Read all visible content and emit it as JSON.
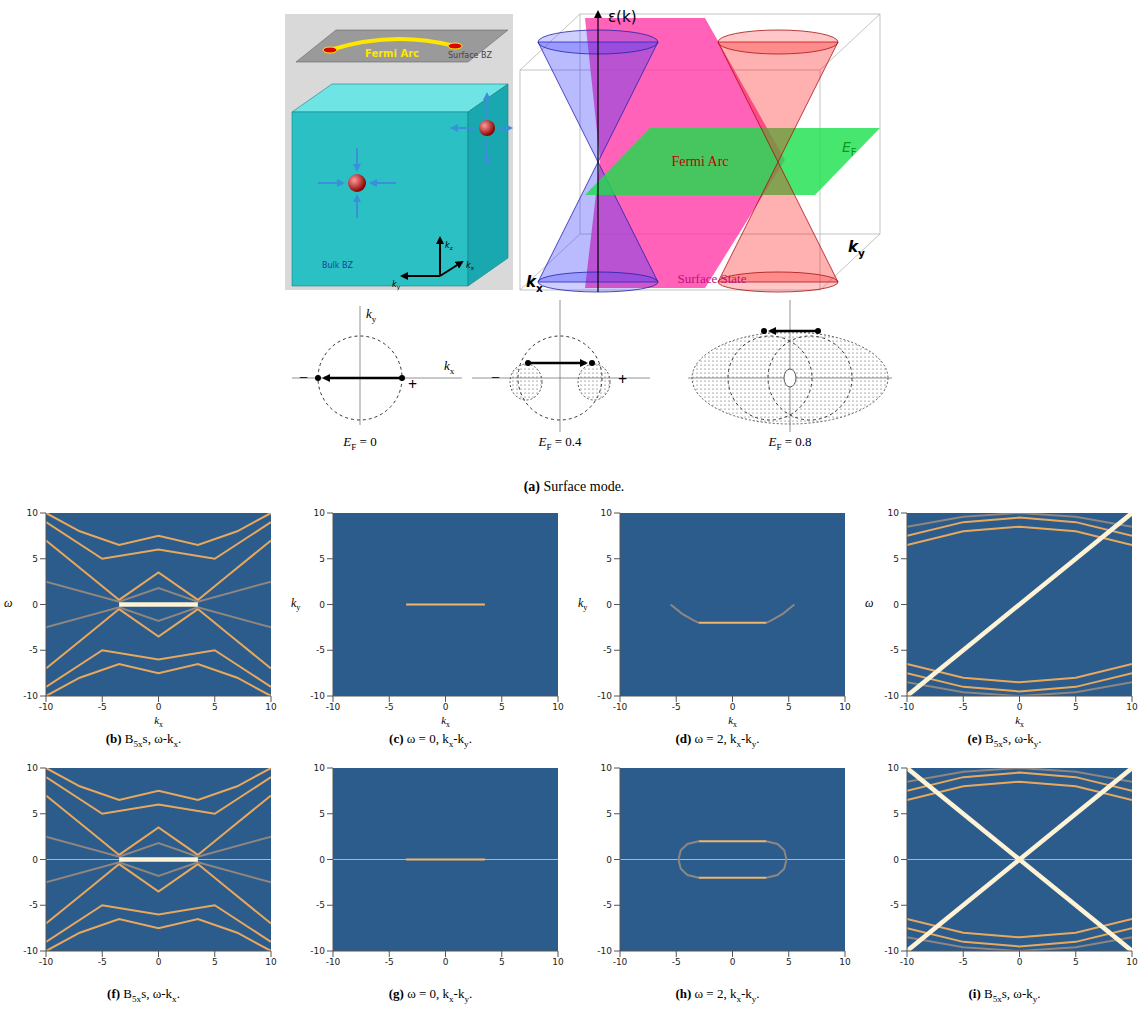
{
  "figure_a": {
    "cube": {
      "arc_label": "Fermi Arc",
      "surface_label": "Surface BZ",
      "bulk_label": "Bulk BZ",
      "axis_labels": [
        {
          "base": "k",
          "sub": "z"
        },
        {
          "base": "k",
          "sub": "y"
        },
        {
          "base": "k",
          "sub": "x"
        }
      ]
    },
    "bands": {
      "energy_label": "ε(k)",
      "fermi_label": {
        "base": "E",
        "sub": "F"
      },
      "arc_label": "Fermi Arc",
      "surface_label": "Surface State",
      "axis_labels": [
        {
          "base": "k",
          "sub": "x"
        },
        {
          "base": "k",
          "sub": "y"
        }
      ]
    },
    "sketches": [
      {
        "axis_labels": [
          {
            "base": "k",
            "sub": "y"
          },
          {
            "base": "k",
            "sub": "x"
          }
        ],
        "minus": "−",
        "plus": "+",
        "label": {
          "base": "E",
          "sub": "F",
          "after": " = 0"
        }
      },
      {
        "minus": "−",
        "plus": "+",
        "label": {
          "base": "E",
          "sub": "F",
          "after": " = 0.4"
        }
      },
      {
        "label": {
          "base": "E",
          "sub": "F",
          "after": " = 0.8"
        }
      }
    ],
    "caption": [
      {
        "bold": "(a)"
      },
      {
        "text": " Surface mode."
      }
    ]
  },
  "chart_data": [
    {
      "type": "line",
      "color": "#2b5c8c",
      "xlim": [
        -10,
        10
      ],
      "ylim": [
        -10,
        10
      ],
      "xticks": [
        -10,
        -5,
        0,
        5,
        10
      ],
      "yticks": [
        -10,
        -5,
        0,
        5,
        10
      ],
      "x_label": {
        "base": "k",
        "sub": "x"
      },
      "y_label": {
        "base": "ω"
      },
      "caption": [
        {
          "bold": "(b)"
        },
        {
          "text": " B"
        },
        {
          "sub": "5x"
        },
        {
          "text": "s, ω-k"
        },
        {
          "sub": "x"
        },
        {
          "text": "."
        }
      ],
      "series": [
        {
          "color": "#e9a85c",
          "x": [
            -10,
            -6,
            -3.5,
            0,
            3.5,
            6,
            10
          ],
          "values": [
            7,
            3,
            0.5,
            3.5,
            0.5,
            3,
            7
          ]
        },
        {
          "color": "#e9a85c",
          "x": [
            -10,
            -6,
            -3.5,
            0,
            3.5,
            6,
            10
          ],
          "values": [
            -7,
            -3,
            -0.5,
            -3.5,
            -0.5,
            -3,
            -7
          ]
        },
        {
          "color": "#e9a85c",
          "x": [
            -10,
            -5,
            0,
            5,
            10
          ],
          "values": [
            9,
            5,
            6,
            5,
            9
          ]
        },
        {
          "color": "#e9a85c",
          "x": [
            -10,
            -5,
            0,
            5,
            10
          ],
          "values": [
            -9,
            -5,
            -6,
            -5,
            -9
          ]
        },
        {
          "color": "#e9a85c",
          "x": [
            -10,
            -7,
            -3.5,
            0,
            3.5,
            7,
            10
          ],
          "values": [
            10,
            8,
            6.5,
            7.5,
            6.5,
            8,
            10
          ]
        },
        {
          "color": "#e9a85c",
          "x": [
            -10,
            -7,
            -3.5,
            0,
            3.5,
            7,
            10
          ],
          "values": [
            -10,
            -8,
            -6.5,
            -7.5,
            -6.5,
            -8,
            -10
          ]
        },
        {
          "color": "#8f8680",
          "x": [
            -10,
            -3.5,
            0,
            3.5,
            10
          ],
          "values": [
            2.5,
            0.3,
            1.8,
            0.3,
            2.5
          ]
        },
        {
          "color": "#8f8680",
          "x": [
            -10,
            -3.5,
            0,
            3.5,
            10
          ],
          "values": [
            -2.5,
            -0.3,
            -1.8,
            -0.3,
            -2.5
          ]
        },
        {
          "color": "#fff3d6",
          "x": [
            -3.5,
            3.5
          ],
          "values": [
            0,
            0
          ],
          "line_style": "thick"
        }
      ]
    },
    {
      "type": "line",
      "color": "#2b5c8c",
      "xlim": [
        -10,
        10
      ],
      "ylim": [
        -10,
        10
      ],
      "xticks": [
        -10,
        -5,
        0,
        5,
        10
      ],
      "yticks": [
        -10,
        -5,
        0,
        5,
        10
      ],
      "x_label": {
        "base": "k",
        "sub": "x"
      },
      "y_label": {
        "base": "k",
        "sub": "y"
      },
      "caption": [
        {
          "bold": "(c)"
        },
        {
          "text": " ω = 0, k"
        },
        {
          "sub": "x"
        },
        {
          "text": "-k"
        },
        {
          "sub": "y"
        },
        {
          "text": "."
        }
      ],
      "series": [
        {
          "color": "#f2b66a",
          "x": [
            -3.5,
            3.5
          ],
          "values": [
            0,
            0
          ]
        }
      ]
    },
    {
      "type": "line",
      "color": "#2b5c8c",
      "xlim": [
        -10,
        10
      ],
      "ylim": [
        -10,
        10
      ],
      "xticks": [
        -10,
        -5,
        0,
        5,
        10
      ],
      "yticks": [
        -10,
        -5,
        0,
        5,
        10
      ],
      "x_label": {
        "base": "k",
        "sub": "x"
      },
      "y_label": {
        "base": "k",
        "sub": "y"
      },
      "caption": [
        {
          "bold": "(d)"
        },
        {
          "text": " ω = 2, k"
        },
        {
          "sub": "x"
        },
        {
          "text": "-k"
        },
        {
          "sub": "y"
        },
        {
          "text": "."
        }
      ],
      "series": [
        {
          "color": "#8f8680",
          "x": [
            -5.5,
            -4.5,
            -3.5,
            -3
          ],
          "values": [
            0,
            -1,
            -1.7,
            -2
          ]
        },
        {
          "color": "#8f8680",
          "x": [
            3,
            3.5,
            4.5,
            5.5
          ],
          "values": [
            -2,
            -1.7,
            -1,
            0
          ]
        },
        {
          "color": "#f2b66a",
          "x": [
            -3,
            3
          ],
          "values": [
            -2,
            -2
          ]
        }
      ]
    },
    {
      "type": "line",
      "color": "#2b5c8c",
      "xlim": [
        -10,
        10
      ],
      "ylim": [
        -10,
        10
      ],
      "xticks": [
        -10,
        -5,
        0,
        5,
        10
      ],
      "yticks": [
        -10,
        -5,
        0,
        5,
        10
      ],
      "x_label": {
        "base": "k",
        "sub": "x"
      },
      "y_label": {
        "base": "ω"
      },
      "caption": [
        {
          "bold": "(e)"
        },
        {
          "text": " B"
        },
        {
          "sub": "5x"
        },
        {
          "text": "s, ω-k"
        },
        {
          "sub": "y"
        },
        {
          "text": "."
        }
      ],
      "series": [
        {
          "color": "#e9a85c",
          "x": [
            -10,
            -5,
            0,
            5,
            10
          ],
          "values": [
            6.5,
            8,
            8.5,
            8,
            6.5
          ]
        },
        {
          "color": "#e9a85c",
          "x": [
            -10,
            -5,
            0,
            5,
            10
          ],
          "values": [
            7.5,
            9,
            9.5,
            9,
            7.5
          ]
        },
        {
          "color": "#8f8680",
          "x": [
            -10,
            -5,
            0,
            5,
            10
          ],
          "values": [
            8.5,
            9.6,
            10,
            9.6,
            8.5
          ]
        },
        {
          "color": "#e9a85c",
          "x": [
            -10,
            -5,
            0,
            5,
            10
          ],
          "values": [
            -6.5,
            -8,
            -8.5,
            -8,
            -6.5
          ]
        },
        {
          "color": "#e9a85c",
          "x": [
            -10,
            -5,
            0,
            5,
            10
          ],
          "values": [
            -7.5,
            -9,
            -9.5,
            -9,
            -7.5
          ]
        },
        {
          "color": "#8f8680",
          "x": [
            -10,
            -5,
            0,
            5,
            10
          ],
          "values": [
            -8.5,
            -9.6,
            -10,
            -9.6,
            -8.5
          ]
        },
        {
          "color": "#fff3d6",
          "x": [
            -10,
            10
          ],
          "values": [
            -10,
            10
          ],
          "line_style": "thick"
        }
      ]
    },
    {
      "type": "line",
      "color": "#2b5c8c",
      "xlim": [
        -10,
        10
      ],
      "ylim": [
        -10,
        10
      ],
      "xticks": [
        -10,
        -5,
        0,
        5,
        10
      ],
      "yticks": [
        -10,
        -5,
        0,
        5,
        10
      ],
      "caption": [
        {
          "bold": "(f)"
        },
        {
          "text": " B"
        },
        {
          "sub": "5x"
        },
        {
          "text": "s, ω-k"
        },
        {
          "sub": "x"
        },
        {
          "text": "."
        }
      ],
      "series": [
        {
          "color": "#e9a85c",
          "x": [
            -10,
            -6,
            -3.5,
            0,
            3.5,
            6,
            10
          ],
          "values": [
            7,
            3,
            0.5,
            3.5,
            0.5,
            3,
            7
          ]
        },
        {
          "color": "#e9a85c",
          "x": [
            -10,
            -6,
            -3.5,
            0,
            3.5,
            6,
            10
          ],
          "values": [
            -7,
            -3,
            -0.5,
            -3.5,
            -0.5,
            -3,
            -7
          ]
        },
        {
          "color": "#e9a85c",
          "x": [
            -10,
            -5,
            0,
            5,
            10
          ],
          "values": [
            9,
            5,
            6,
            5,
            9
          ]
        },
        {
          "color": "#e9a85c",
          "x": [
            -10,
            -5,
            0,
            5,
            10
          ],
          "values": [
            -9,
            -5,
            -6,
            -5,
            -9
          ]
        },
        {
          "color": "#e9a85c",
          "x": [
            -10,
            -7,
            -3.5,
            0,
            3.5,
            7,
            10
          ],
          "values": [
            10,
            8,
            6.5,
            7.5,
            6.5,
            8,
            10
          ]
        },
        {
          "color": "#e9a85c",
          "x": [
            -10,
            -7,
            -3.5,
            0,
            3.5,
            7,
            10
          ],
          "values": [
            -10,
            -8,
            -6.5,
            -7.5,
            -6.5,
            -8,
            -10
          ]
        },
        {
          "color": "#8f8680",
          "x": [
            -10,
            -3.5,
            0,
            3.5,
            10
          ],
          "values": [
            2.5,
            0.3,
            1.8,
            0.3,
            2.5
          ]
        },
        {
          "color": "#8f8680",
          "x": [
            -10,
            -3.5,
            0,
            3.5,
            10
          ],
          "values": [
            -2.5,
            -0.3,
            -1.8,
            -0.3,
            -2.5
          ]
        },
        {
          "color": "#b4b4b4",
          "x": [
            -10,
            10
          ],
          "values": [
            0,
            0
          ],
          "line_style": "thin"
        },
        {
          "color": "#fff3d6",
          "x": [
            -3.5,
            3.5
          ],
          "values": [
            0,
            0
          ],
          "line_style": "thick"
        }
      ]
    },
    {
      "type": "line",
      "color": "#2b5c8c",
      "xlim": [
        -10,
        10
      ],
      "ylim": [
        -10,
        10
      ],
      "xticks": [
        -10,
        -5,
        0,
        5,
        10
      ],
      "yticks": [
        -10,
        -5,
        0,
        5,
        10
      ],
      "caption": [
        {
          "bold": "(g)"
        },
        {
          "text": " ω = 0, k"
        },
        {
          "sub": "x"
        },
        {
          "text": "-k"
        },
        {
          "sub": "y"
        },
        {
          "text": "."
        }
      ],
      "series": [
        {
          "color": "#b4b4b4",
          "x": [
            -10,
            10
          ],
          "values": [
            0,
            0
          ],
          "line_style": "thin"
        },
        {
          "color": "#f2b66a",
          "x": [
            -3.5,
            3.5
          ],
          "values": [
            0,
            0
          ]
        }
      ]
    },
    {
      "type": "line",
      "color": "#2b5c8c",
      "xlim": [
        -10,
        10
      ],
      "ylim": [
        -10,
        10
      ],
      "xticks": [
        -10,
        -5,
        0,
        5,
        10
      ],
      "yticks": [
        -10,
        -5,
        0,
        5,
        10
      ],
      "caption": [
        {
          "bold": "(h)"
        },
        {
          "text": " ω = 2, k"
        },
        {
          "sub": "x"
        },
        {
          "text": "-k"
        },
        {
          "sub": "y"
        },
        {
          "text": "."
        }
      ],
      "series": [
        {
          "color": "#b4b4b4",
          "x": [
            -10,
            10
          ],
          "values": [
            0,
            0
          ],
          "line_style": "thin"
        },
        {
          "color": "#8f8680",
          "x": [
            -3,
            -4,
            -4.6,
            -4.8,
            -4.6,
            -4,
            -3
          ],
          "values": [
            2,
            1.7,
            1,
            0,
            -1,
            -1.7,
            -2
          ]
        },
        {
          "color": "#8f8680",
          "x": [
            3,
            4,
            4.6,
            4.8,
            4.6,
            4,
            3
          ],
          "values": [
            2,
            1.7,
            1,
            0,
            -1,
            -1.7,
            -2
          ]
        },
        {
          "color": "#f2b66a",
          "x": [
            -3,
            3
          ],
          "values": [
            2,
            2
          ]
        },
        {
          "color": "#f2b66a",
          "x": [
            -3,
            3
          ],
          "values": [
            -2,
            -2
          ]
        }
      ]
    },
    {
      "type": "line",
      "color": "#2b5c8c",
      "xlim": [
        -10,
        10
      ],
      "ylim": [
        -10,
        10
      ],
      "xticks": [
        -10,
        -5,
        0,
        5,
        10
      ],
      "yticks": [
        -10,
        -5,
        0,
        5,
        10
      ],
      "caption": [
        {
          "bold": "(i)"
        },
        {
          "text": " B"
        },
        {
          "sub": "5x"
        },
        {
          "text": "s, ω-k"
        },
        {
          "sub": "y"
        },
        {
          "text": "."
        }
      ],
      "series": [
        {
          "color": "#e9a85c",
          "x": [
            -10,
            -5,
            0,
            5,
            10
          ],
          "values": [
            6.5,
            8,
            8.5,
            8,
            6.5
          ]
        },
        {
          "color": "#e9a85c",
          "x": [
            -10,
            -5,
            0,
            5,
            10
          ],
          "values": [
            7.5,
            9,
            9.5,
            9,
            7.5
          ]
        },
        {
          "color": "#8f8680",
          "x": [
            -10,
            -5,
            0,
            5,
            10
          ],
          "values": [
            8.5,
            9.6,
            10,
            9.6,
            8.5
          ]
        },
        {
          "color": "#e9a85c",
          "x": [
            -10,
            -5,
            0,
            5,
            10
          ],
          "values": [
            -6.5,
            -8,
            -8.5,
            -8,
            -6.5
          ]
        },
        {
          "color": "#e9a85c",
          "x": [
            -10,
            -5,
            0,
            5,
            10
          ],
          "values": [
            -7.5,
            -9,
            -9.5,
            -9,
            -7.5
          ]
        },
        {
          "color": "#8f8680",
          "x": [
            -10,
            -5,
            0,
            5,
            10
          ],
          "values": [
            -8.5,
            -9.6,
            -10,
            -9.6,
            -8.5
          ]
        },
        {
          "color": "#b4b4b4",
          "x": [
            -10,
            10
          ],
          "values": [
            0,
            0
          ],
          "line_style": "thin"
        },
        {
          "color": "#fff3d6",
          "x": [
            -10,
            10
          ],
          "values": [
            -10,
            10
          ],
          "line_style": "thick"
        },
        {
          "color": "#fff3d6",
          "x": [
            -10,
            10
          ],
          "values": [
            10,
            -10
          ],
          "line_style": "thick"
        }
      ]
    }
  ]
}
